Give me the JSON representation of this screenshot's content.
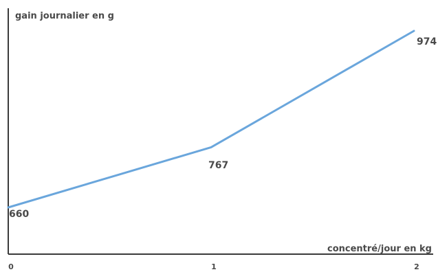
{
  "chart_data": {
    "type": "line",
    "xlabel": "concentré/jour en kg",
    "ylabel": "gain journalier en g",
    "x": [
      0,
      1,
      2
    ],
    "x_tick_labels": [
      "0",
      "1",
      "2"
    ],
    "series": [
      {
        "values": [
          660,
          767,
          974
        ],
        "color": "#6aa6dc"
      }
    ],
    "data_labels": [
      "660",
      "767",
      "974"
    ],
    "grid": false
  }
}
